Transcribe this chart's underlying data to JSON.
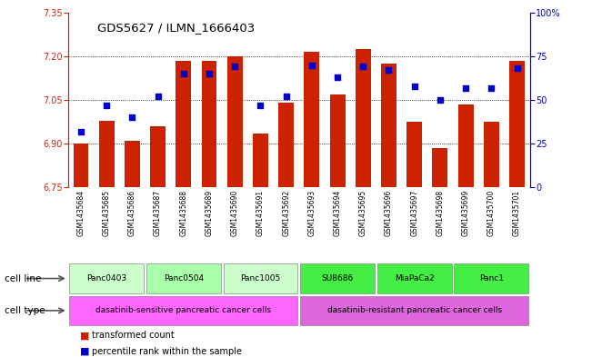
{
  "title": "GDS5627 / ILMN_1666403",
  "samples": [
    "GSM1435684",
    "GSM1435685",
    "GSM1435686",
    "GSM1435687",
    "GSM1435688",
    "GSM1435689",
    "GSM1435690",
    "GSM1435691",
    "GSM1435692",
    "GSM1435693",
    "GSM1435694",
    "GSM1435695",
    "GSM1435696",
    "GSM1435697",
    "GSM1435698",
    "GSM1435699",
    "GSM1435700",
    "GSM1435701"
  ],
  "transformed_count": [
    6.9,
    6.98,
    6.91,
    6.96,
    7.185,
    7.185,
    7.2,
    6.935,
    7.04,
    7.215,
    7.07,
    7.225,
    7.175,
    6.975,
    6.885,
    7.035,
    6.975,
    7.185
  ],
  "percentile_rank": [
    32,
    47,
    40,
    52,
    65,
    65,
    69,
    47,
    52,
    70,
    63,
    69,
    67,
    58,
    50,
    57,
    57,
    68
  ],
  "ylim_left": [
    6.75,
    7.35
  ],
  "ylim_right": [
    0,
    100
  ],
  "yticks_left": [
    6.75,
    6.9,
    7.05,
    7.2,
    7.35
  ],
  "yticks_right": [
    0,
    25,
    50,
    75,
    100
  ],
  "ytick_labels_right": [
    "0",
    "25",
    "50",
    "75",
    "100%"
  ],
  "hlines": [
    6.9,
    7.05,
    7.2
  ],
  "bar_color": "#cc2200",
  "dot_color": "#0000cc",
  "cell_line_groups": [
    {
      "label": "Panc0403",
      "start": 0,
      "end": 2,
      "color": "#ccffcc"
    },
    {
      "label": "Panc0504",
      "start": 3,
      "end": 5,
      "color": "#aaffaa"
    },
    {
      "label": "Panc1005",
      "start": 6,
      "end": 8,
      "color": "#ccffcc"
    },
    {
      "label": "SU8686",
      "start": 9,
      "end": 11,
      "color": "#44ee44"
    },
    {
      "label": "MiaPaCa2",
      "start": 12,
      "end": 14,
      "color": "#44ee44"
    },
    {
      "label": "Panc1",
      "start": 15,
      "end": 17,
      "color": "#44ee44"
    }
  ],
  "cell_type_groups": [
    {
      "label": "dasatinib-sensitive pancreatic cancer cells",
      "start": 0,
      "end": 8,
      "color": "#ff66ff"
    },
    {
      "label": "dasatinib-resistant pancreatic cancer cells",
      "start": 9,
      "end": 17,
      "color": "#dd66dd"
    }
  ],
  "legend_items": [
    {
      "label": "transformed count",
      "color": "#cc2200"
    },
    {
      "label": "percentile rank within the sample",
      "color": "#0000cc"
    }
  ],
  "bg_color": "#ffffff",
  "left_axis_color": "#cc2200",
  "right_axis_color": "#0000bb",
  "xlabel_bg": "#cccccc",
  "cell_line_label_color": "#000000",
  "arrow_color": "#555555"
}
